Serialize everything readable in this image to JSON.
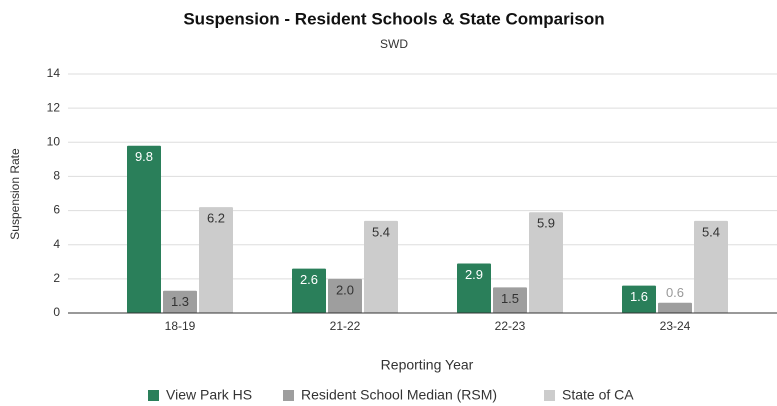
{
  "chart_data": {
    "type": "bar",
    "title": "Suspension - Resident Schools & State Comparison",
    "subtitle": "SWD",
    "x_label": "Reporting Year",
    "y_label": "Suspension Rate",
    "categories": [
      "18-19",
      "21-22",
      "22-23",
      "23-24"
    ],
    "series": [
      {
        "name": "View Park HS",
        "color": "#2a7f5a",
        "values": [
          9.8,
          2.6,
          2.9,
          1.6
        ],
        "value_labels": [
          "9.8",
          "2.6",
          "2.9",
          "1.6"
        ]
      },
      {
        "name": "Resident School Median (RSM)",
        "color": "#9e9e9e",
        "values": [
          1.3,
          2.0,
          1.5,
          0.6
        ],
        "value_labels": [
          "1.3",
          "2.0",
          "1.5",
          "0.6"
        ]
      },
      {
        "name": "State of CA",
        "color": "#cccccc",
        "values": [
          6.2,
          5.4,
          5.9,
          5.4
        ],
        "value_labels": [
          "6.2",
          "5.4",
          "5.9",
          "5.4"
        ]
      }
    ],
    "ylim": [
      0,
      14
    ],
    "yticks": [
      0,
      2,
      4,
      6,
      8,
      10,
      12,
      14
    ],
    "grid": true,
    "legend": "bottom"
  }
}
